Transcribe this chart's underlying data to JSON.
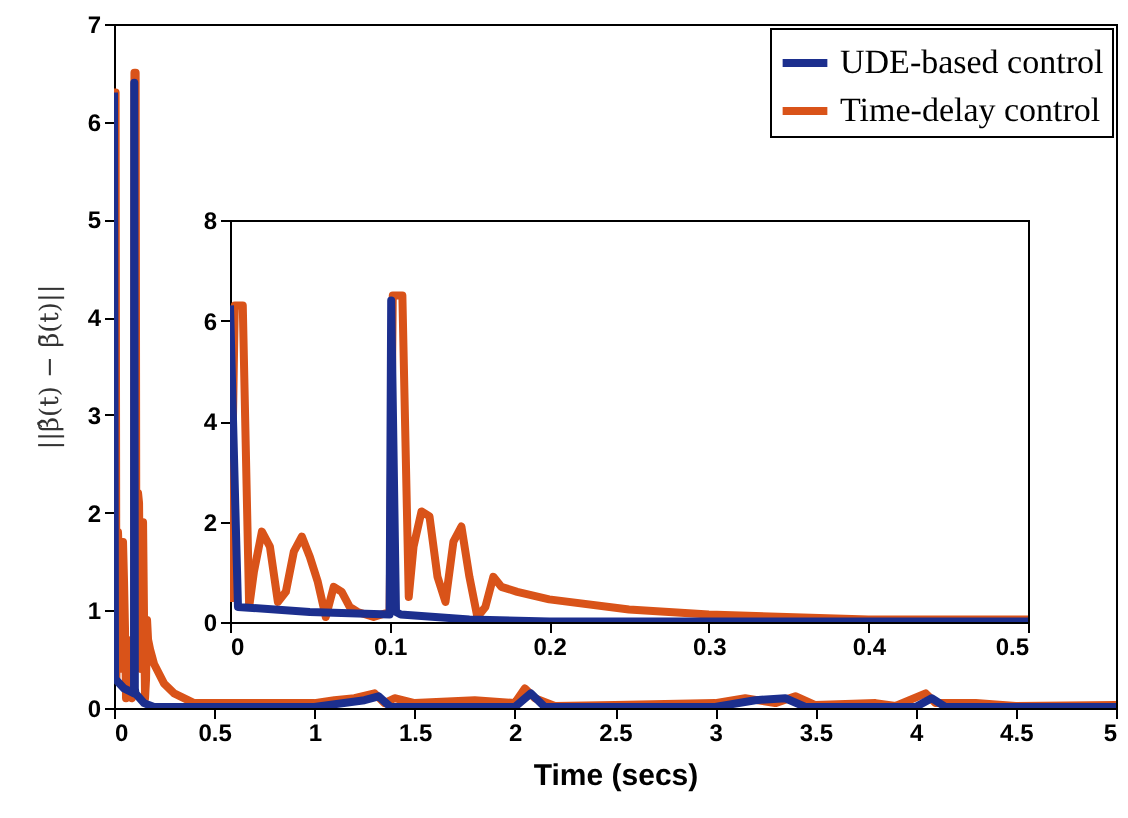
{
  "chart_data": [
    {
      "type": "line",
      "xlabel": "Time (secs)",
      "ylabel": "||β̂(t) − β̄(t)||",
      "xlim": [
        0,
        5
      ],
      "ylim": [
        0,
        7
      ],
      "xticks": [
        0,
        0.5,
        1,
        1.5,
        2,
        2.5,
        3,
        3.5,
        4,
        4.5,
        5
      ],
      "yticks": [
        0,
        1,
        2,
        3,
        4,
        5,
        6,
        7
      ],
      "legend": "top right",
      "grid": false,
      "marker": "none",
      "line_style": "solid",
      "series": [
        {
          "name": "UDE-based control",
          "color": "#1c2f8e",
          "x": [
            0,
            0.005,
            0.05,
            0.1,
            0.101,
            0.104,
            0.107,
            0.15,
            0.2,
            0.3,
            0.5,
            1.0,
            1.25,
            1.32,
            1.38,
            1.5,
            2.0,
            2.08,
            2.15,
            2.5,
            3.0,
            3.2,
            3.35,
            3.45,
            4.0,
            4.08,
            4.15,
            5.0
          ],
          "values": [
            6.3,
            0.3,
            0.2,
            0.15,
            6.4,
            0.2,
            0.15,
            0.05,
            0.01,
            0.01,
            0.01,
            0.01,
            0.08,
            0.12,
            0.01,
            0.01,
            0.01,
            0.15,
            0.01,
            0.01,
            0.01,
            0.08,
            0.1,
            0.01,
            0.01,
            0.1,
            0.01,
            0.01
          ]
        },
        {
          "name": "Time-delay control",
          "color": "#d95319",
          "x": [
            0,
            0.003,
            0.008,
            0.012,
            0.015,
            0.02,
            0.025,
            0.03,
            0.035,
            0.04,
            0.045,
            0.05,
            0.055,
            0.06,
            0.065,
            0.07,
            0.075,
            0.08,
            0.09,
            0.1,
            0.102,
            0.108,
            0.112,
            0.115,
            0.12,
            0.125,
            0.13,
            0.135,
            0.14,
            0.145,
            0.15,
            0.155,
            0.16,
            0.165,
            0.17,
            0.18,
            0.2,
            0.25,
            0.3,
            0.4,
            0.5,
            1.0,
            1.1,
            1.2,
            1.3,
            1.35,
            1.4,
            1.5,
            1.8,
            2.0,
            2.05,
            2.1,
            2.2,
            2.5,
            3.0,
            3.15,
            3.3,
            3.4,
            3.5,
            3.8,
            3.9,
            4.05,
            4.1,
            4.3,
            4.5,
            5.0
          ],
          "values": [
            0.4,
            6.3,
            6.3,
            0.3,
            1.0,
            1.8,
            1.5,
            0.4,
            0.6,
            1.4,
            1.7,
            1.3,
            0.8,
            0.1,
            0.7,
            0.6,
            0.3,
            0.2,
            0.1,
            0.2,
            6.5,
            6.5,
            0.5,
            1.5,
            2.2,
            2.1,
            0.9,
            0.4,
            1.6,
            1.9,
            0.9,
            0.1,
            0.3,
            0.9,
            0.7,
            0.6,
            0.45,
            0.25,
            0.15,
            0.05,
            0.05,
            0.05,
            0.08,
            0.1,
            0.15,
            0.05,
            0.1,
            0.05,
            0.08,
            0.05,
            0.2,
            0.1,
            0.02,
            0.03,
            0.05,
            0.1,
            0.05,
            0.12,
            0.03,
            0.05,
            0.02,
            0.15,
            0.05,
            0.05,
            0.02,
            0.03
          ]
        }
      ]
    },
    {
      "type": "line",
      "xlim": [
        0,
        0.5
      ],
      "ylim": [
        0,
        8
      ],
      "xticks": [
        0,
        0.1,
        0.2,
        0.3,
        0.4,
        0.5
      ],
      "yticks": [
        0,
        2,
        4,
        6,
        8
      ],
      "grid": false,
      "marker": "none",
      "line_style": "solid",
      "series": [
        {
          "color": "#1c2f8e",
          "x": [
            0,
            0.005,
            0.05,
            0.1,
            0.101,
            0.104,
            0.107,
            0.15,
            0.2,
            0.3,
            0.5
          ],
          "values": [
            6.3,
            0.3,
            0.2,
            0.15,
            6.4,
            0.2,
            0.15,
            0.05,
            0.01,
            0.01,
            0.01
          ]
        },
        {
          "color": "#d95319",
          "x": [
            0,
            0.003,
            0.008,
            0.012,
            0.015,
            0.02,
            0.025,
            0.03,
            0.035,
            0.04,
            0.045,
            0.05,
            0.055,
            0.06,
            0.065,
            0.07,
            0.075,
            0.08,
            0.09,
            0.1,
            0.102,
            0.108,
            0.112,
            0.115,
            0.12,
            0.125,
            0.13,
            0.135,
            0.14,
            0.145,
            0.15,
            0.155,
            0.16,
            0.165,
            0.17,
            0.18,
            0.2,
            0.25,
            0.3,
            0.4,
            0.5
          ],
          "values": [
            0.4,
            6.3,
            6.3,
            0.3,
            1.0,
            1.8,
            1.5,
            0.4,
            0.6,
            1.4,
            1.7,
            1.3,
            0.8,
            0.1,
            0.7,
            0.6,
            0.3,
            0.2,
            0.1,
            0.2,
            6.5,
            6.5,
            0.5,
            1.5,
            2.2,
            2.1,
            0.9,
            0.4,
            1.6,
            1.9,
            0.9,
            0.1,
            0.3,
            0.9,
            0.7,
            0.6,
            0.45,
            0.25,
            0.15,
            0.05,
            0.05
          ]
        }
      ]
    }
  ]
}
